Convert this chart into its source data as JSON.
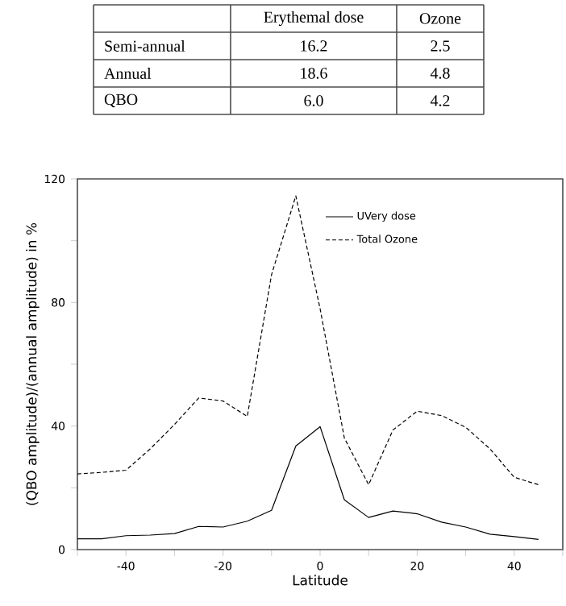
{
  "chart_data": [
    {
      "type": "other",
      "categories": [
        "Erythemal dose",
        "Ozone"
      ],
      "y_categories": [
        "Semi-annual",
        "Annual",
        "QBO"
      ],
      "cell_labels": [
        [
          "16.2",
          "2.5"
        ],
        [
          "18.6",
          "4.8"
        ],
        [
          "6.0",
          "4.2"
        ]
      ]
    },
    {
      "type": "line",
      "xlabel": "Latitude",
      "ylabel": "(QBO amplitude)/(annual amplitude) in %",
      "x": [
        -50,
        -45,
        -40,
        -35,
        -30,
        -25,
        -20,
        -15,
        -10,
        -5,
        0,
        5,
        10,
        15,
        20,
        25,
        30,
        35,
        40,
        45
      ],
      "series": [
        {
          "name": "UVery dose",
          "color": "#000000",
          "line_style": "solid",
          "values": [
            3.5,
            3.5,
            4.5,
            4.7,
            5.2,
            7.5,
            7.3,
            9.2,
            12.7,
            33.5,
            39.8,
            16.1,
            10.4,
            12.5,
            11.6,
            8.9,
            7.3,
            5.0,
            4.2,
            3.3
          ]
        },
        {
          "name": "Total Ozone",
          "color": "#000000",
          "line_style": "dashed",
          "values": [
            24.5,
            25,
            25.7,
            32.6,
            40.5,
            49.1,
            48.1,
            43.1,
            89,
            114.5,
            78,
            36.1,
            21,
            38.7,
            44.8,
            43.4,
            39.6,
            32.6,
            23.4,
            21
          ]
        }
      ],
      "xlim": [
        -50,
        50
      ],
      "ylim": [
        0,
        120
      ],
      "xticks": [
        {
          "value": -50,
          "label": null
        },
        -40,
        {
          "value": -30,
          "label": null
        },
        -20,
        {
          "value": -10,
          "label": null
        },
        0,
        {
          "value": 10,
          "label": null
        },
        20,
        {
          "value": 30,
          "label": null
        },
        40,
        {
          "value": 50,
          "label": null
        }
      ],
      "yticks": [
        0,
        {
          "value": 20,
          "label": null
        },
        40,
        {
          "value": 60,
          "label": null
        },
        80,
        {
          "value": 100,
          "label": null
        },
        120
      ],
      "legend": "top right",
      "marker": "none",
      "grid": false
    }
  ]
}
